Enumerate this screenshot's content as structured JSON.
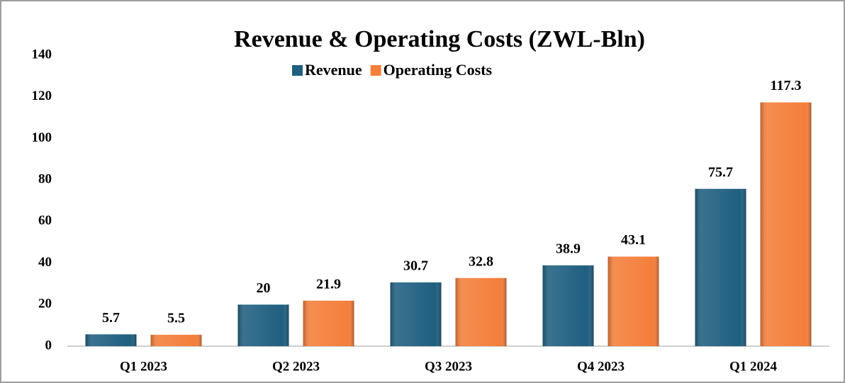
{
  "chart_data": {
    "type": "bar",
    "title": "Revenue & Operating Costs (ZWL-Bln)",
    "categories": [
      "Q1 2023",
      "Q2 2023",
      "Q3 2023",
      "Q4 2023",
      "Q1 2024"
    ],
    "series": [
      {
        "name": "Revenue",
        "color": "#1f5f80",
        "values": [
          5.7,
          20,
          30.7,
          38.9,
          75.7
        ]
      },
      {
        "name": "Operating Costs",
        "color": "#f47e3a",
        "values": [
          5.5,
          21.9,
          32.8,
          43.1,
          117.3
        ]
      }
    ],
    "ylim": [
      0,
      140
    ],
    "yticks": [
      0,
      20,
      40,
      60,
      80,
      100,
      120,
      140
    ],
    "grid": false,
    "legend": "top"
  }
}
